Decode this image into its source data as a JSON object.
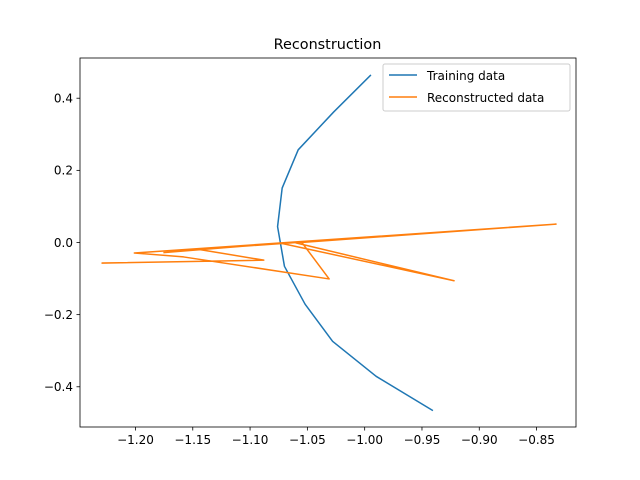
{
  "chart_data": {
    "type": "line",
    "title": "Reconstruction",
    "xlabel": "",
    "ylabel": "",
    "xlim": [
      -1.2484,
      -0.8156
    ],
    "ylim": [
      -0.5115,
      0.5115
    ],
    "x_ticks": [
      -1.2,
      -1.15,
      -1.1,
      -1.05,
      -1.0,
      -0.95,
      -0.9,
      -0.85
    ],
    "x_tick_labels": [
      "−1.20",
      "−1.15",
      "−1.10",
      "−1.05",
      "−1.00",
      "−0.95",
      "−0.90",
      "−0.85"
    ],
    "y_ticks": [
      -0.4,
      -0.2,
      0.0,
      0.2,
      0.4
    ],
    "y_tick_labels": [
      "−0.4",
      "−0.2",
      "0.0",
      "0.2",
      "0.4"
    ],
    "grid": false,
    "legend_position": "upper-right",
    "series": [
      {
        "name": "Training data",
        "color": "#1f77b4",
        "x": [
          -0.995,
          -1.027,
          -1.058,
          -1.072,
          -1.076,
          -1.07,
          -1.052,
          -1.028,
          -0.99,
          -0.941
        ],
        "y": [
          0.463,
          0.362,
          0.257,
          0.151,
          0.044,
          -0.066,
          -0.171,
          -0.274,
          -0.371,
          -0.465
        ]
      },
      {
        "name": "Reconstructed data",
        "color": "#ff7f0e",
        "x": [
          -1.229,
          -1.088,
          -1.145,
          -1.055,
          -1.031,
          -1.158,
          -1.201,
          -0.833,
          -1.06,
          -0.922,
          -1.073,
          -1.175
        ],
        "y": [
          -0.057,
          -0.049,
          -0.019,
          0.001,
          -0.101,
          -0.04,
          -0.029,
          0.051,
          -0.001,
          -0.106,
          -0.002,
          -0.028
        ]
      }
    ]
  }
}
